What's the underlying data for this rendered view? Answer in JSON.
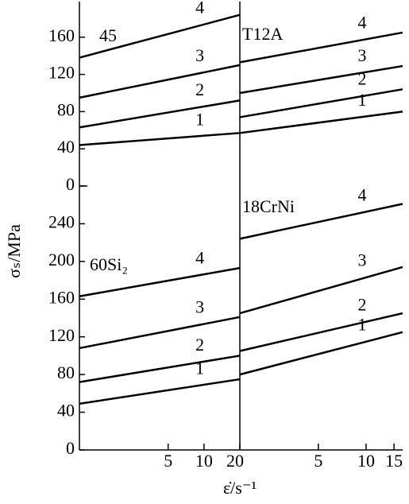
{
  "chart_data": [
    {
      "type": "line",
      "label": "45",
      "ylabel": "σₛ/MPa",
      "x": [
        0.9,
        20
      ],
      "xlim": [
        0.9,
        20
      ],
      "ylim": [
        0,
        200
      ],
      "yticks": [
        0,
        40,
        80,
        120,
        160
      ],
      "series": [
        {
          "name": "1",
          "color": "#000000",
          "values": [
            44,
            57
          ]
        },
        {
          "name": "2",
          "color": "#000000",
          "values": [
            63,
            92
          ]
        },
        {
          "name": "3",
          "color": "#000000",
          "values": [
            95,
            130
          ]
        },
        {
          "name": "4",
          "color": "#000000",
          "values": [
            138,
            184
          ]
        }
      ]
    },
    {
      "type": "line",
      "label": "T12A",
      "x": [
        1.6,
        17
      ],
      "xlim": [
        1.6,
        17
      ],
      "ylim": [
        0,
        200
      ],
      "series": [
        {
          "name": "1",
          "color": "#000000",
          "values": [
            57,
            80
          ]
        },
        {
          "name": "2",
          "color": "#000000",
          "values": [
            74,
            104
          ]
        },
        {
          "name": "3",
          "color": "#000000",
          "values": [
            100,
            129
          ]
        },
        {
          "name": "4",
          "color": "#000000",
          "values": [
            133,
            165
          ]
        }
      ]
    },
    {
      "type": "line",
      "label": "60Si₂",
      "xlabel": "ε̇/s⁻¹",
      "x": [
        0.9,
        20
      ],
      "xlim": [
        0.9,
        20
      ],
      "xticks": [
        5,
        10,
        20
      ],
      "ylim": [
        0,
        280
      ],
      "yticks": [
        0,
        40,
        80,
        120,
        160,
        200,
        240
      ],
      "series": [
        {
          "name": "1",
          "color": "#000000",
          "values": [
            49,
            75
          ]
        },
        {
          "name": "2",
          "color": "#000000",
          "values": [
            72,
            100
          ]
        },
        {
          "name": "3",
          "color": "#000000",
          "values": [
            108,
            141
          ]
        },
        {
          "name": "4",
          "color": "#000000",
          "values": [
            163,
            193
          ]
        }
      ]
    },
    {
      "type": "line",
      "label": "18CrNi",
      "x": [
        1.6,
        17
      ],
      "xlim": [
        1.6,
        17
      ],
      "xticks": [
        5,
        10,
        15
      ],
      "ylim": [
        0,
        280
      ],
      "series": [
        {
          "name": "1",
          "color": "#000000",
          "values": [
            80,
            125
          ]
        },
        {
          "name": "2",
          "color": "#000000",
          "values": [
            105,
            145
          ]
        },
        {
          "name": "3",
          "color": "#000000",
          "values": [
            145,
            194
          ]
        },
        {
          "name": "4",
          "color": "#000000",
          "values": [
            224,
            261
          ]
        }
      ]
    }
  ]
}
